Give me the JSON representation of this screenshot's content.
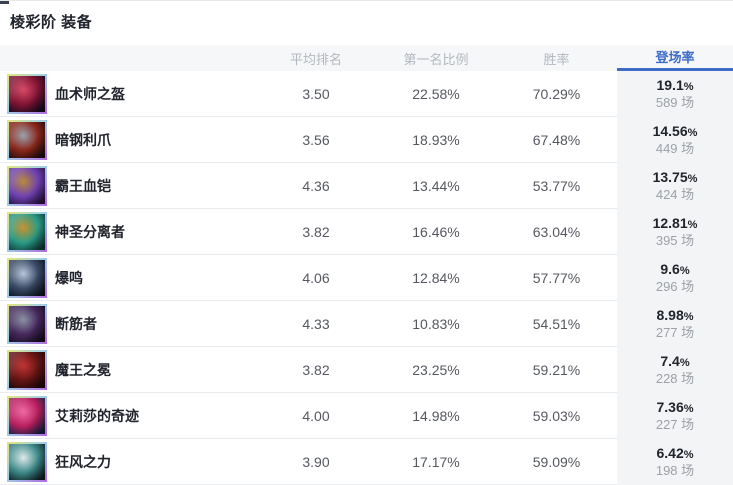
{
  "page": {
    "title": "棱彩阶 装备"
  },
  "colors": {
    "accent_blue": "#3d6cc8",
    "rate_column_bg": "#f3f4f5",
    "header_bg": "#f6f7f8"
  },
  "table": {
    "columns": {
      "item": "",
      "avg_rank": "平均排名",
      "first_rate": "第一名比例",
      "win_rate": "胜率",
      "play_rate": "登场率"
    },
    "active_column": "play_rate",
    "rows": [
      {
        "name": "血术师之盔",
        "avg_rank": "3.50",
        "first_rate": "22.58%",
        "win_rate": "70.29%",
        "play_rate_value": "19.1",
        "play_rate_unit": "%",
        "games": "589 场",
        "icon_colors": [
          "#140a20",
          "#801433",
          "#d84a68"
        ]
      },
      {
        "name": "暗钢利爪",
        "avg_rank": "3.56",
        "first_rate": "18.93%",
        "win_rate": "67.48%",
        "play_rate_value": "14.56",
        "play_rate_unit": "%",
        "games": "449 场",
        "icon_colors": [
          "#1c0b10",
          "#8a2618",
          "#9aa3b0"
        ]
      },
      {
        "name": "霸王血铠",
        "avg_rank": "4.36",
        "first_rate": "13.44%",
        "win_rate": "53.77%",
        "play_rate_value": "13.75",
        "play_rate_unit": "%",
        "games": "424 场",
        "icon_colors": [
          "#2a123f",
          "#6f41b4",
          "#b98a3a"
        ]
      },
      {
        "name": "神圣分离者",
        "avg_rank": "3.82",
        "first_rate": "16.46%",
        "win_rate": "63.04%",
        "play_rate_value": "12.81",
        "play_rate_unit": "%",
        "games": "395 场",
        "icon_colors": [
          "#0e3c38",
          "#2a9c86",
          "#c8912f"
        ]
      },
      {
        "name": "爆鸣",
        "avg_rank": "4.06",
        "first_rate": "12.84%",
        "win_rate": "57.77%",
        "play_rate_value": "9.6",
        "play_rate_unit": "%",
        "games": "296 场",
        "icon_colors": [
          "#0c1220",
          "#3a4a66",
          "#b8c6da"
        ]
      },
      {
        "name": "断筋者",
        "avg_rank": "4.33",
        "first_rate": "10.83%",
        "win_rate": "54.51%",
        "play_rate_value": "8.98",
        "play_rate_unit": "%",
        "games": "277 场",
        "icon_colors": [
          "#160d20",
          "#47285e",
          "#8a93a3"
        ]
      },
      {
        "name": "魔王之冕",
        "avg_rank": "3.82",
        "first_rate": "23.25%",
        "win_rate": "59.21%",
        "play_rate_value": "7.4",
        "play_rate_unit": "%",
        "games": "228 场",
        "icon_colors": [
          "#1c0808",
          "#641414",
          "#c23434"
        ]
      },
      {
        "name": "艾莉莎的奇迹",
        "avg_rank": "4.00",
        "first_rate": "14.98%",
        "win_rate": "59.03%",
        "play_rate_value": "7.36",
        "play_rate_unit": "%",
        "games": "227 场",
        "icon_colors": [
          "#122244",
          "#b81e5e",
          "#f06aa4"
        ]
      },
      {
        "name": "狂风之力",
        "avg_rank": "3.90",
        "first_rate": "17.17%",
        "win_rate": "59.09%",
        "play_rate_value": "6.42",
        "play_rate_unit": "%",
        "games": "198 场",
        "icon_colors": [
          "#0e2024",
          "#3e8a8a",
          "#dfe9ea"
        ]
      }
    ]
  }
}
